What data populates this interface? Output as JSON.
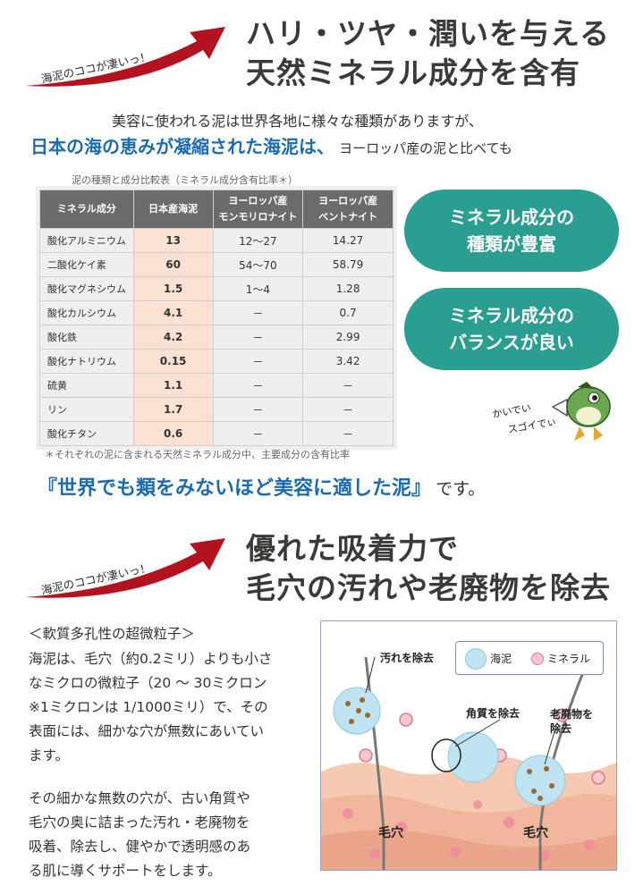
{
  "section1": {
    "badge": "海泥のココが凄いっ！",
    "title_line1": "ハリ・ツヤ・潤いを与える",
    "title_line2": "天然ミネラル成分を含有"
  },
  "intro": {
    "line1": "美容に使われる泥は世界各地に様々な種類がありますが、",
    "line2_bold": "日本の海の恵みが凝縮された海泥は、",
    "line2_rest": "ヨーロッパ産の泥と比べても"
  },
  "table": {
    "caption": "泥の種類と成分比較表（ミネラル成分含有比率＊）",
    "headers": [
      "ミネラル成分",
      "日本産海泥",
      "ヨーロッパ産\nモンモリロナイト",
      "ヨーロッパ産\nベントナイト"
    ],
    "rows": [
      [
        "酸化アルミニウム",
        "13",
        "12～27",
        "14.27"
      ],
      [
        "二酸化ケイ素",
        "60",
        "54～70",
        "58.79"
      ],
      [
        "酸化マグネシウム",
        "1.5",
        "1～4",
        "1.28"
      ],
      [
        "酸化カルシウム",
        "4.1",
        "－",
        "0.7"
      ],
      [
        "酸化鉄",
        "4.2",
        "－",
        "2.99"
      ],
      [
        "酸化ナトリウム",
        "0.15",
        "－",
        "3.42"
      ],
      [
        "硫黄",
        "1.1",
        "－",
        "－"
      ],
      [
        "リン",
        "1.7",
        "－",
        "－"
      ],
      [
        "酸化チタン",
        "0.6",
        "－",
        "－"
      ]
    ],
    "footnote": "＊それぞれの泥に含まれる天然ミネラル成分中、主要成分の含有比率"
  },
  "pills": [
    {
      "line1": "ミネラル成分の",
      "line2": "種類が豊富"
    },
    {
      "line1": "ミネラル成分の",
      "line2": "バランスが良い"
    }
  ],
  "mascot": {
    "line1": "かいでい",
    "line2": "スゴイでぃ"
  },
  "tagline": {
    "bold": "『世界でも類をみないほど美容に適した泥』",
    "rest": "です。"
  },
  "section2": {
    "badge": "海泥のココが凄いっ！",
    "title_line1": "優れた吸着力で",
    "title_line2": "毛穴の汚れや老廃物を除去"
  },
  "body": {
    "heading": "＜軟質多孔性の超微粒子＞",
    "para1": [
      "海泥は、毛穴（約0.2ミリ）よりも小さ",
      "なミクロの微粒子（20 ～ 30ミクロン",
      "※1ミクロンは 1/1000ミリ）で、その",
      "表面には、細かな穴が無数にあいてい",
      "ます。"
    ],
    "para2": [
      "その細かな無数の穴が、古い角質や",
      "毛穴の奥に詰まった汚れ・老廃物を",
      "吸着、除去し、健やかで透明感のあ",
      "る肌に導くサポートをします。"
    ]
  },
  "diagram": {
    "legend_mud": "海泥",
    "legend_mineral": "ミネラル",
    "label_dirt": "汚れを除去",
    "label_keratin": "角質を除去",
    "label_waste": "老廃物を\n除去",
    "pore1": "毛穴",
    "pore2": "毛穴"
  },
  "colors": {
    "accent_red": "#b3121f",
    "teal": "#2a9e90",
    "blue": "#1b6bb3",
    "highlight": "#fbe1d2"
  }
}
